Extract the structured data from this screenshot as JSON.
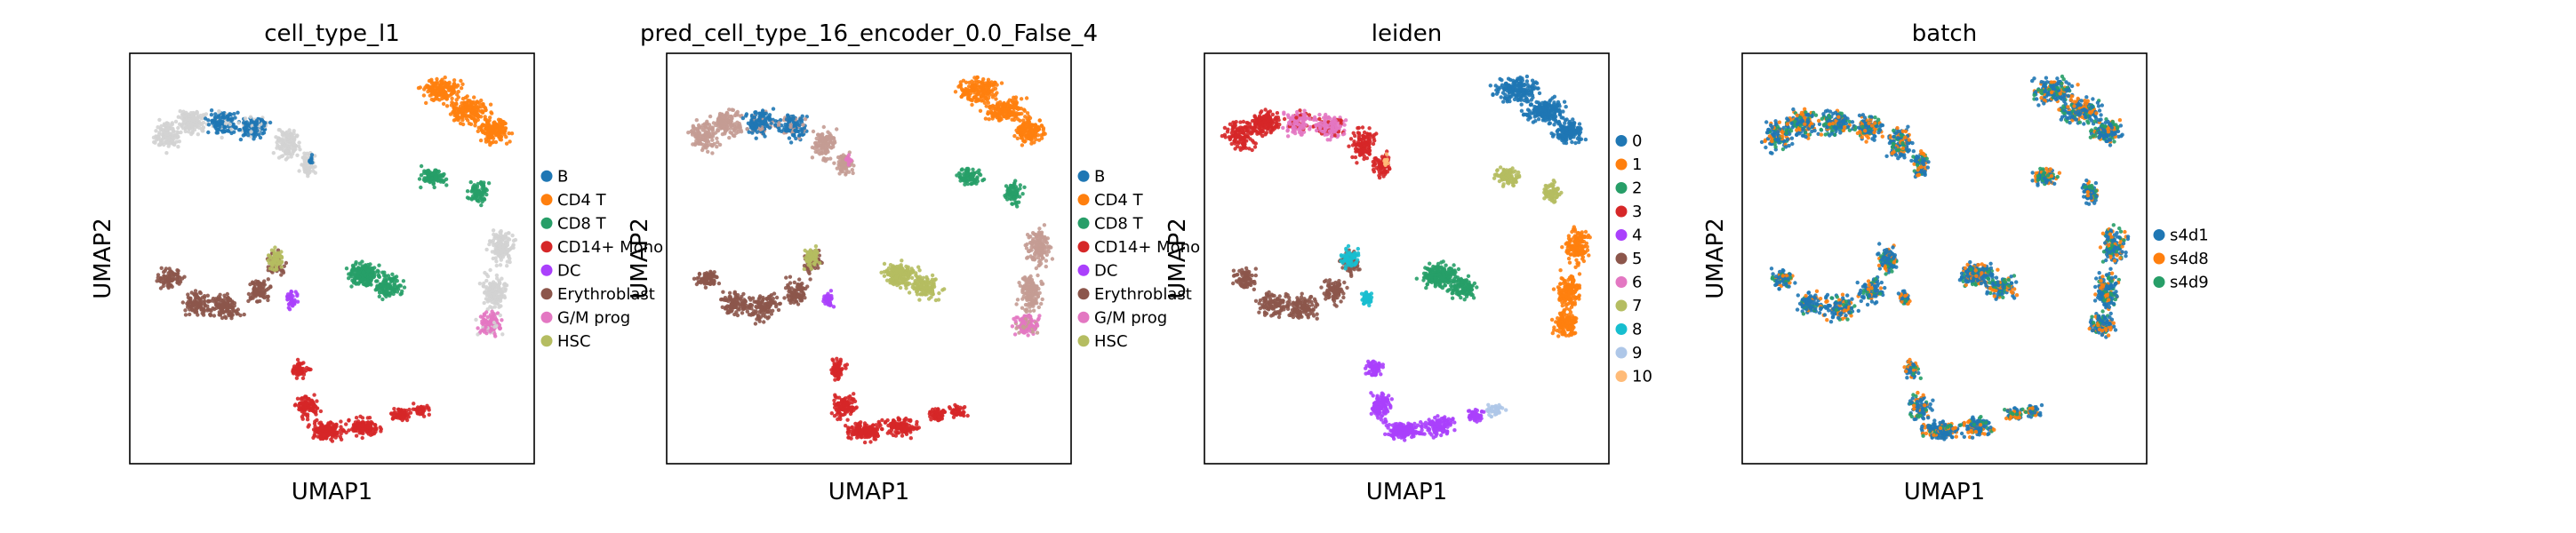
{
  "figure": {
    "panels": [
      {
        "title": "cell_type_l1",
        "xlabel": "UMAP1",
        "ylabel": "UMAP2",
        "legend": [
          "B",
          "CD4 T",
          "CD8 T",
          "CD14+ Mono",
          "DC",
          "Erythroblast",
          "G/M prog",
          "HSC"
        ],
        "colors": [
          "#1f77b4",
          "#ff7f0e",
          "#279e68",
          "#d62728",
          "#aa40fc",
          "#8c564b",
          "#e377c2",
          "#b5bd61"
        ],
        "background_color": "#d3d3d3"
      },
      {
        "title": "pred_cell_type_16_encoder_0.0_False_4",
        "xlabel": "UMAP1",
        "ylabel": "UMAP2",
        "legend": [
          "B",
          "CD4 T",
          "CD8 T",
          "CD14+ Mono",
          "DC",
          "Erythroblast",
          "G/M prog",
          "HSC"
        ],
        "colors": [
          "#1f77b4",
          "#ff7f0e",
          "#279e68",
          "#d62728",
          "#aa40fc",
          "#8c564b",
          "#e377c2",
          "#b5bd61"
        ],
        "background_color": "#c49c94"
      },
      {
        "title": "leiden",
        "xlabel": "UMAP1",
        "ylabel": "UMAP2",
        "legend": [
          "0",
          "1",
          "2",
          "3",
          "4",
          "5",
          "6",
          "7",
          "8",
          "9",
          "10"
        ],
        "colors": [
          "#1f77b4",
          "#ff7f0e",
          "#279e68",
          "#d62728",
          "#aa40fc",
          "#8c564b",
          "#e377c2",
          "#b5bd61",
          "#17becf",
          "#aec7e8",
          "#ffbb78"
        ]
      },
      {
        "title": "batch",
        "xlabel": "UMAP1",
        "ylabel": "UMAP2",
        "legend": [
          "s4d1",
          "s4d8",
          "s4d9"
        ],
        "colors": [
          "#1f77b4",
          "#ff7f0e",
          "#279e68"
        ]
      }
    ]
  },
  "chart_data": [
    {
      "type": "scatter",
      "title": "cell_type_l1",
      "xlabel": "UMAP1",
      "ylabel": "UMAP2",
      "series": [
        {
          "name": "B"
        },
        {
          "name": "CD4 T"
        },
        {
          "name": "CD8 T"
        },
        {
          "name": "CD14+ Mono"
        },
        {
          "name": "DC"
        },
        {
          "name": "Erythroblast"
        },
        {
          "name": "G/M prog"
        },
        {
          "name": "HSC"
        }
      ],
      "legend": "right",
      "grid": false
    },
    {
      "type": "scatter",
      "title": "pred_cell_type_16_encoder_0.0_False_4",
      "xlabel": "UMAP1",
      "ylabel": "UMAP2",
      "series": [
        {
          "name": "B"
        },
        {
          "name": "CD4 T"
        },
        {
          "name": "CD8 T"
        },
        {
          "name": "CD14+ Mono"
        },
        {
          "name": "DC"
        },
        {
          "name": "Erythroblast"
        },
        {
          "name": "G/M prog"
        },
        {
          "name": "HSC"
        }
      ],
      "legend": "right",
      "grid": false
    },
    {
      "type": "scatter",
      "title": "leiden",
      "xlabel": "UMAP1",
      "ylabel": "UMAP2",
      "series": [
        {
          "name": "0"
        },
        {
          "name": "1"
        },
        {
          "name": "2"
        },
        {
          "name": "3"
        },
        {
          "name": "4"
        },
        {
          "name": "5"
        },
        {
          "name": "6"
        },
        {
          "name": "7"
        },
        {
          "name": "8"
        },
        {
          "name": "9"
        },
        {
          "name": "10"
        }
      ],
      "legend": "right",
      "grid": false
    },
    {
      "type": "scatter",
      "title": "batch",
      "xlabel": "UMAP1",
      "ylabel": "UMAP2",
      "series": [
        {
          "name": "s4d1"
        },
        {
          "name": "s4d8"
        },
        {
          "name": "s4d9"
        }
      ],
      "legend": "right",
      "grid": false
    }
  ]
}
